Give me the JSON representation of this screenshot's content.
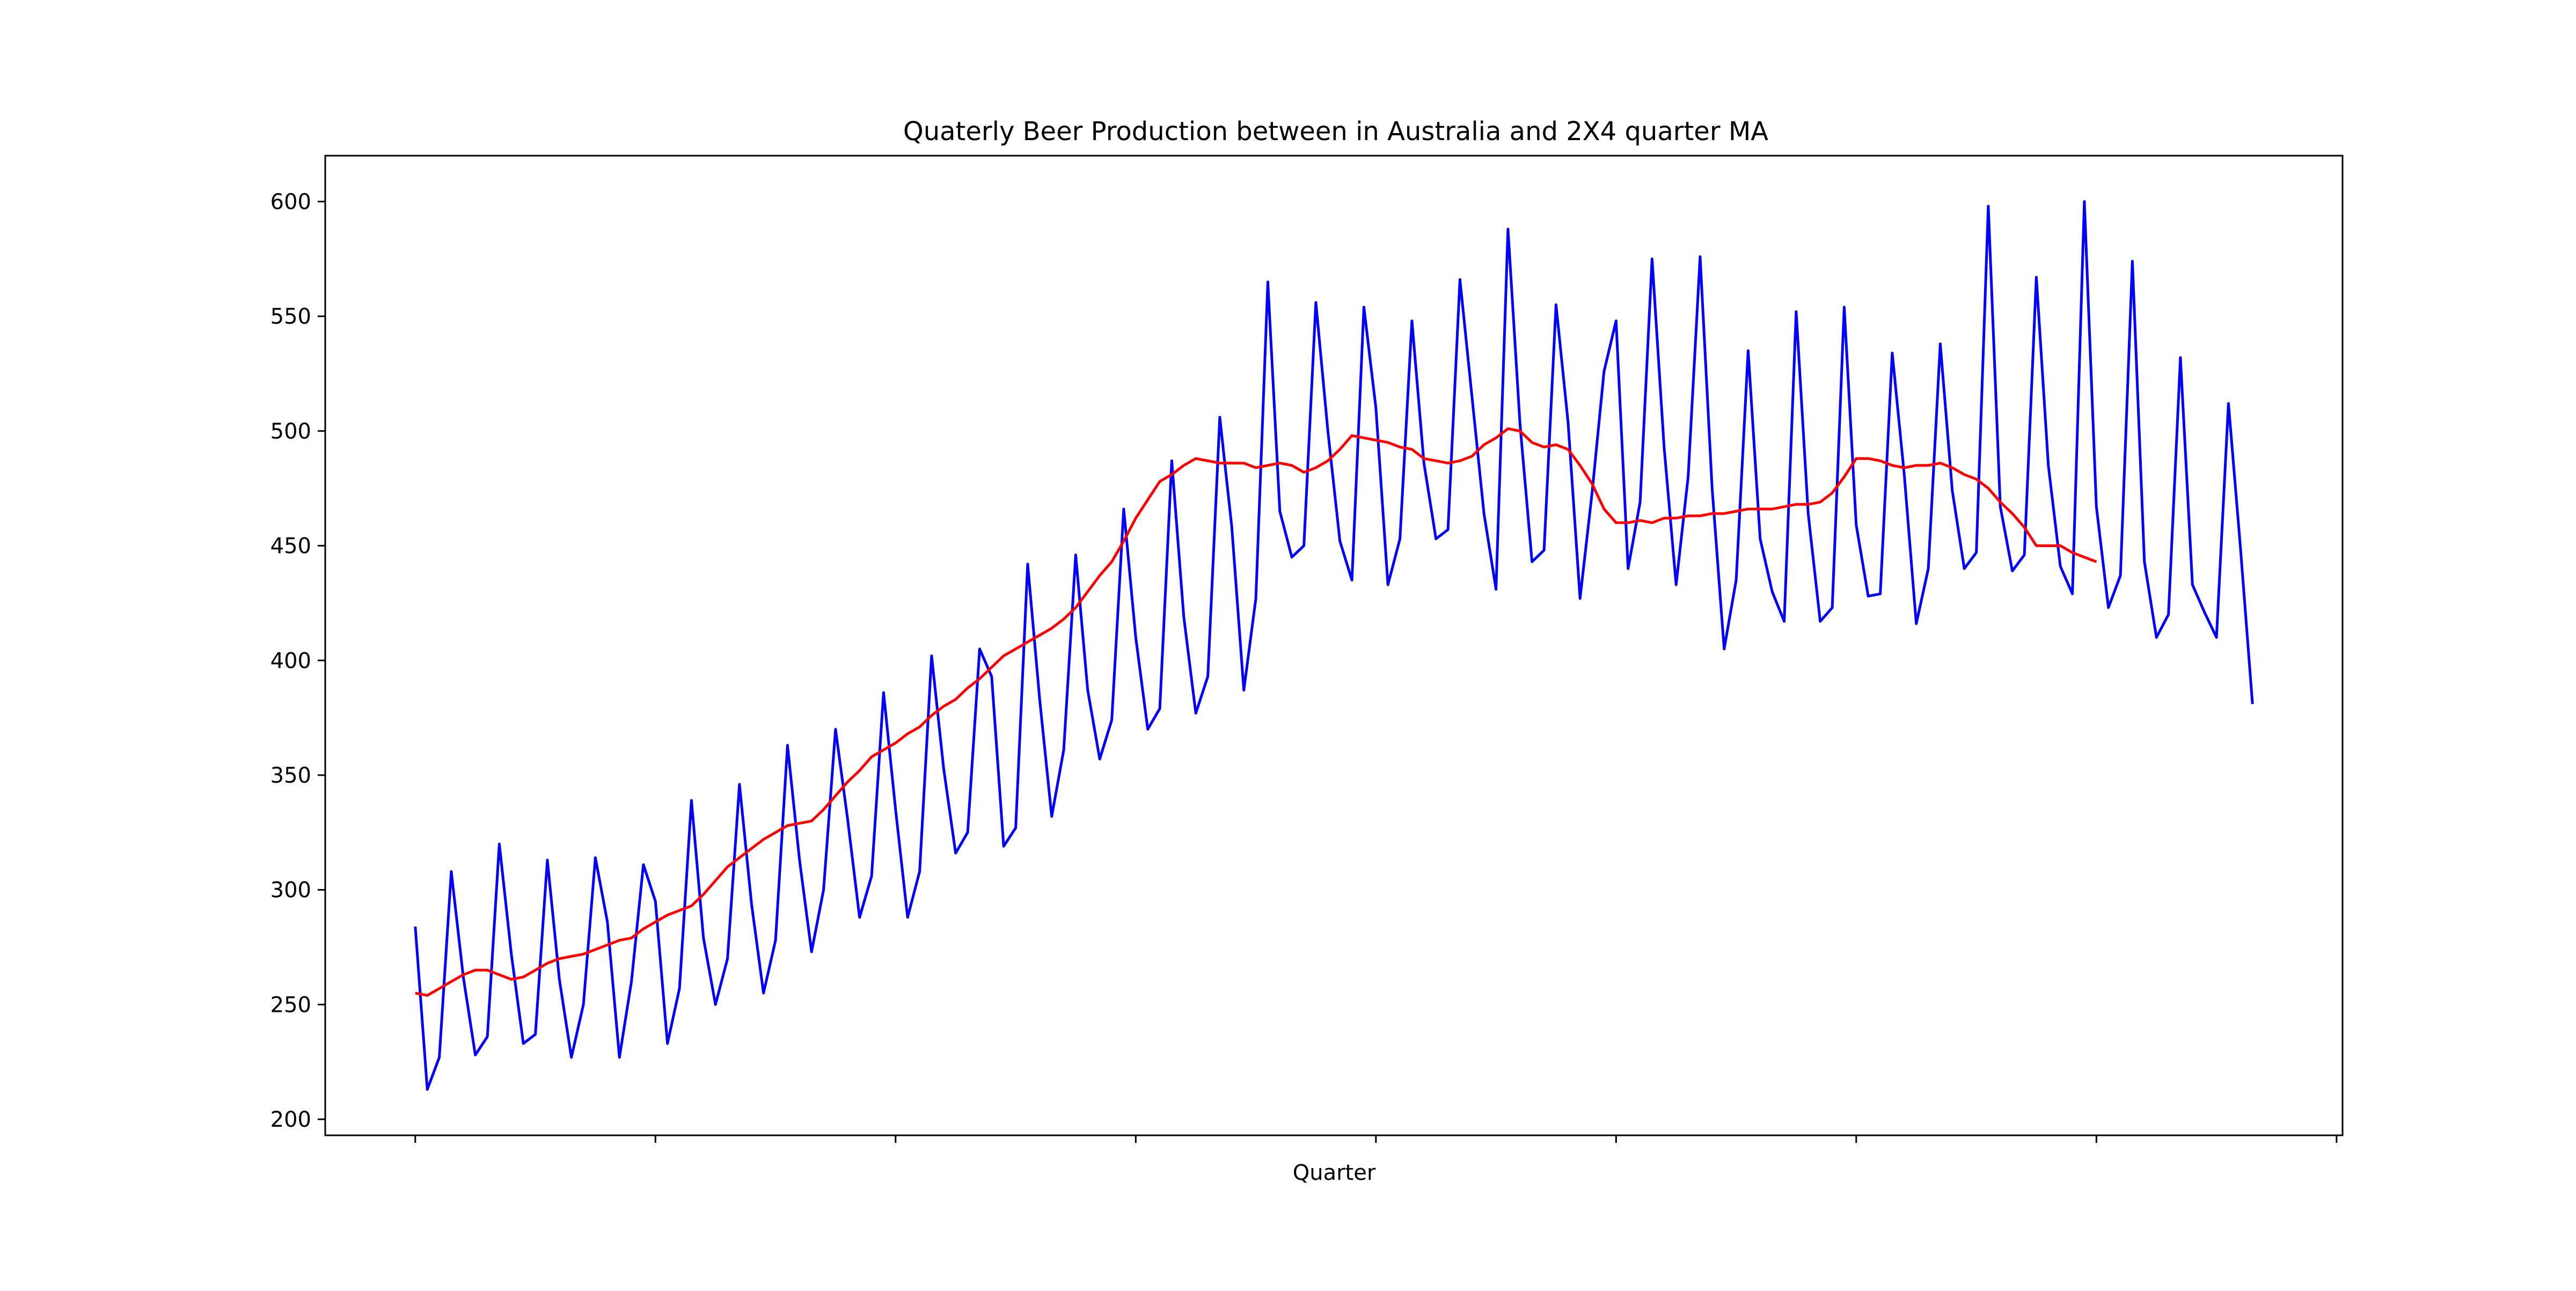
{
  "chart_data": {
    "type": "line",
    "title": "Quaterly Beer Production between in Australia and 2X4 quarter MA",
    "xlabel": "Quarter",
    "ylabel": "",
    "ylim": [
      193,
      620
    ],
    "xlim": [
      -7.5,
      160.5
    ],
    "yticks": [
      200,
      250,
      300,
      350,
      400,
      450,
      500,
      550,
      600
    ],
    "ytick_labels": [
      "200",
      "250",
      "300",
      "350",
      "400",
      "450",
      "500",
      "550",
      "600"
    ],
    "xticks_unlabeled": [
      0,
      20,
      40,
      60,
      80,
      100,
      120,
      140,
      160
    ],
    "grid": false,
    "legend": "none",
    "series": [
      {
        "color": "#0000ff",
        "x_start": 0,
        "values": [
          284,
          213,
          227,
          308,
          262,
          228,
          236,
          320,
          272,
          233,
          237,
          313,
          261,
          227,
          250,
          314,
          286,
          227,
          260,
          311,
          295,
          233,
          257,
          339,
          279,
          250,
          270,
          346,
          294,
          255,
          278,
          363,
          313,
          273,
          300,
          370,
          331,
          288,
          306,
          386,
          335,
          288,
          308,
          402,
          353,
          316,
          325,
          405,
          393,
          319,
          327,
          442,
          383,
          332,
          361,
          446,
          387,
          357,
          374,
          466,
          410,
          370,
          379,
          487,
          419,
          377,
          393,
          506,
          458,
          387,
          427,
          565,
          465,
          445,
          450,
          556,
          500,
          452,
          435,
          554,
          510,
          433,
          453,
          548,
          486,
          453,
          457,
          566,
          515,
          464,
          431,
          588,
          503,
          443,
          448,
          555,
          504,
          427,
          473,
          526,
          548,
          440,
          469,
          575,
          493,
          433,
          480,
          576,
          475,
          405,
          435,
          535,
          453,
          430,
          417,
          552,
          464,
          417,
          423,
          554,
          459,
          428,
          429,
          534,
          481,
          416,
          440,
          538,
          474,
          440,
          447,
          598,
          467,
          439,
          446,
          567,
          485,
          441,
          429,
          600,
          467,
          423,
          437,
          574,
          443,
          410,
          420,
          532,
          433,
          421,
          410,
          512,
          449,
          381
        ]
      },
      {
        "color": "#ff0000",
        "x_start": 0,
        "values": [
          255,
          254,
          257,
          260,
          263,
          265,
          265,
          263,
          261,
          262,
          265,
          268,
          270,
          271,
          272,
          274,
          276,
          278,
          279,
          283,
          286,
          289,
          291,
          293,
          298,
          304,
          310,
          314,
          318,
          322,
          325,
          328,
          329,
          330,
          335,
          341,
          347,
          352,
          358,
          361,
          364,
          368,
          371,
          376,
          380,
          383,
          388,
          392,
          397,
          402,
          405,
          408,
          411,
          414,
          418,
          423,
          430,
          437,
          443,
          452,
          462,
          470,
          478,
          481,
          485,
          488,
          487,
          486,
          486,
          486,
          484,
          485,
          486,
          485,
          482,
          484,
          487,
          492,
          498,
          497,
          496,
          495,
          493,
          492,
          488,
          487,
          486,
          487,
          489,
          494,
          497,
          501,
          500,
          495,
          493,
          494,
          492,
          485,
          477,
          466,
          460,
          460,
          461,
          460,
          462,
          462,
          463,
          463,
          464,
          464,
          465,
          466,
          466,
          466,
          467,
          468,
          468,
          469,
          473,
          480,
          488,
          488,
          487,
          485,
          484,
          485,
          485,
          486,
          484,
          481,
          479,
          475,
          469,
          464,
          458,
          450,
          450,
          450,
          447,
          445,
          443
        ]
      }
    ]
  }
}
